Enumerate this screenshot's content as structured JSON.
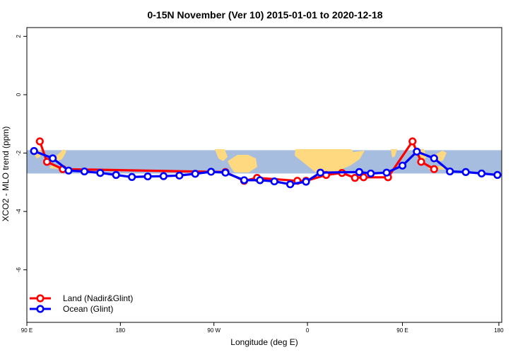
{
  "chart_data": {
    "type": "line",
    "title": "0-15N November (Ver 10)   2015-01-01 to 2020-12-18",
    "xlabel": "Longitude (deg E)",
    "ylabel": "XCO2 - MLO trend (ppm)",
    "xlim": [
      90,
      420
    ],
    "ylim": [
      -7.8,
      2.3
    ],
    "x_ticks": [
      {
        "value": 90,
        "label": "90 E"
      },
      {
        "value": 155,
        "label": "180"
      },
      {
        "value": 220,
        "label": "90 W"
      },
      {
        "value": 285,
        "label": "0"
      },
      {
        "value": 351,
        "label": "90 E"
      },
      {
        "value": 418,
        "label": "180"
      }
    ],
    "y_ticks": [
      {
        "value": 2,
        "label": "2"
      },
      {
        "value": 0,
        "label": "0"
      },
      {
        "value": -2,
        "label": "-2"
      },
      {
        "value": -4,
        "label": "-4"
      },
      {
        "value": -6,
        "label": "-6"
      }
    ],
    "background_band": {
      "y_from": -1.9,
      "y_to": -2.7,
      "ocean_color": "#a7bddf",
      "land_color": "#ffd97f"
    },
    "legend": {
      "position": "bottom-left"
    },
    "grid": false,
    "series": [
      {
        "name": "Land (Nadir&Glint)",
        "color": "#ff0000",
        "points": [
          {
            "x": 99,
            "y": -1.6
          },
          {
            "x": 104,
            "y": -2.3
          },
          {
            "x": 115,
            "y": -2.55
          },
          {
            "x": 228,
            "y": -2.65
          },
          {
            "x": 241,
            "y": -2.95
          },
          {
            "x": 250,
            "y": -2.85
          },
          {
            "x": 278,
            "y": -2.95
          },
          {
            "x": 284,
            "y": -2.95
          },
          {
            "x": 298,
            "y": -2.75
          },
          {
            "x": 309,
            "y": -2.68
          },
          {
            "x": 318,
            "y": -2.85
          },
          {
            "x": 324,
            "y": -2.83
          },
          {
            "x": 341,
            "y": -2.83
          },
          {
            "x": 358,
            "y": -1.6
          },
          {
            "x": 364,
            "y": -2.3
          },
          {
            "x": 373,
            "y": -2.55
          }
        ]
      },
      {
        "name": "Ocean (Glint)",
        "color": "#0000ff",
        "points": [
          {
            "x": 95,
            "y": -1.93
          },
          {
            "x": 108,
            "y": -2.18
          },
          {
            "x": 119,
            "y": -2.6
          },
          {
            "x": 130,
            "y": -2.63
          },
          {
            "x": 141,
            "y": -2.68
          },
          {
            "x": 152,
            "y": -2.75
          },
          {
            "x": 163,
            "y": -2.82
          },
          {
            "x": 174,
            "y": -2.8
          },
          {
            "x": 185,
            "y": -2.79
          },
          {
            "x": 196,
            "y": -2.77
          },
          {
            "x": 207,
            "y": -2.71
          },
          {
            "x": 218,
            "y": -2.64
          },
          {
            "x": 228,
            "y": -2.67
          },
          {
            "x": 241,
            "y": -2.93
          },
          {
            "x": 252,
            "y": -2.93
          },
          {
            "x": 262,
            "y": -2.97
          },
          {
            "x": 273,
            "y": -3.07
          },
          {
            "x": 284,
            "y": -2.98
          },
          {
            "x": 294,
            "y": -2.67
          },
          {
            "x": 321,
            "y": -2.65
          },
          {
            "x": 329,
            "y": -2.7
          },
          {
            "x": 340,
            "y": -2.67
          },
          {
            "x": 351,
            "y": -2.43
          },
          {
            "x": 361,
            "y": -1.95
          },
          {
            "x": 373,
            "y": -2.18
          },
          {
            "x": 384,
            "y": -2.63
          },
          {
            "x": 395,
            "y": -2.65
          },
          {
            "x": 406,
            "y": -2.7
          },
          {
            "x": 417,
            "y": -2.75
          }
        ]
      }
    ]
  }
}
